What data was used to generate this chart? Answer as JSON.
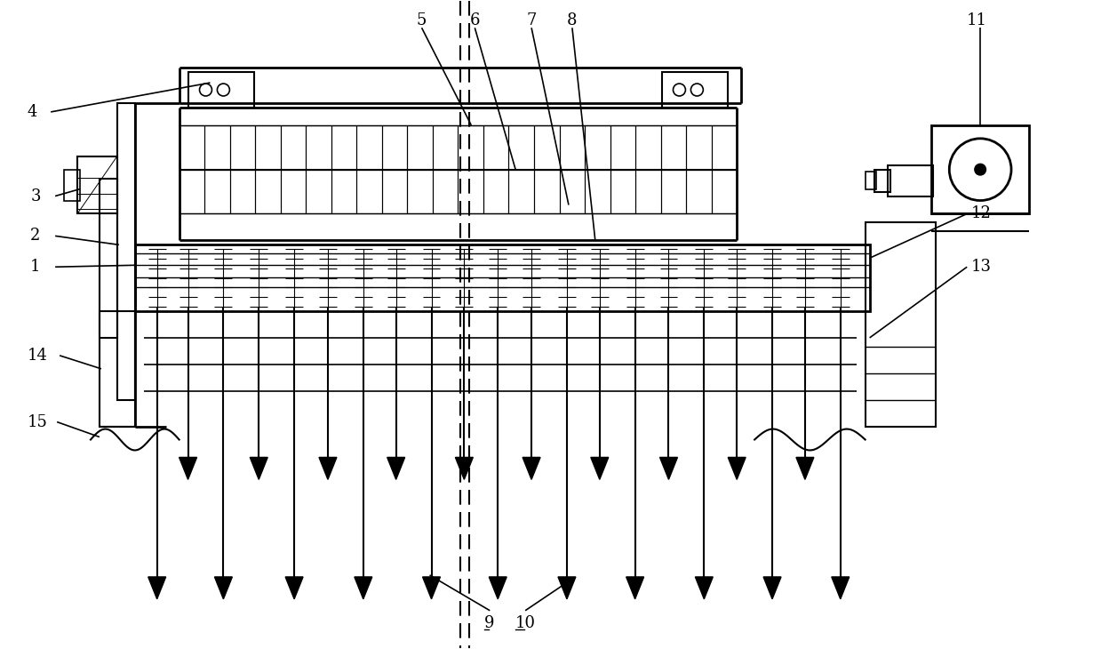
{
  "bg_color": "#ffffff",
  "lc": "#000000",
  "fig_w": 12.39,
  "fig_h": 7.3,
  "dpi": 100
}
